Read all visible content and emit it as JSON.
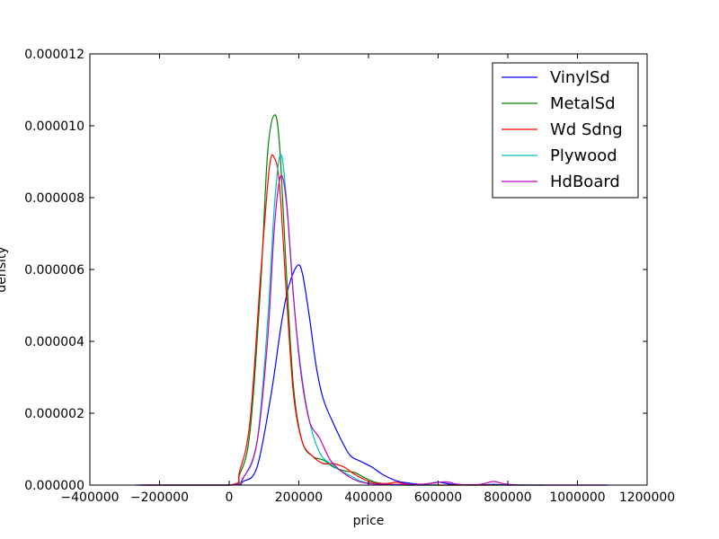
{
  "chart_data": {
    "type": "line",
    "xlabel": "price",
    "ylabel": "density",
    "xlim": [
      -400000,
      1200000
    ],
    "ylim": [
      0,
      1.2e-05
    ],
    "x_ticks": [
      -400000,
      -200000,
      0,
      200000,
      400000,
      600000,
      800000,
      1000000,
      1200000
    ],
    "x_tick_labels": [
      "−400000",
      "−200000",
      "0",
      "200000",
      "400000",
      "600000",
      "800000",
      "1000000",
      "1200000"
    ],
    "y_ticks": [
      0,
      2e-06,
      4e-06,
      6e-06,
      8e-06,
      1e-05,
      1.2e-05
    ],
    "y_tick_labels": [
      "0.000000",
      "0.000002",
      "0.000004",
      "0.000006",
      "0.000008",
      "0.000010",
      "0.000012"
    ],
    "grid": false,
    "legend_position": "top-right",
    "series": [
      {
        "name": "VinylSd",
        "color": "#0000ff",
        "points": [
          [
            -260000,
            0
          ],
          [
            0,
            0
          ],
          [
            40000,
            1e-07
          ],
          [
            80000,
            5e-07
          ],
          [
            120000,
            2.5e-06
          ],
          [
            150000,
            4.5e-06
          ],
          [
            170000,
            5.5e-06
          ],
          [
            195000,
            6.1e-06
          ],
          [
            210000,
            5.9e-06
          ],
          [
            230000,
            4.7e-06
          ],
          [
            250000,
            3.3e-06
          ],
          [
            270000,
            2.4e-06
          ],
          [
            300000,
            1.7e-06
          ],
          [
            330000,
            1.1e-06
          ],
          [
            350000,
            8e-07
          ],
          [
            380000,
            6.5e-07
          ],
          [
            410000,
            5e-07
          ],
          [
            440000,
            3e-07
          ],
          [
            480000,
            1.2e-07
          ],
          [
            520000,
            5e-08
          ],
          [
            560000,
            2e-08
          ],
          [
            600000,
            8e-08
          ],
          [
            640000,
            2e-08
          ],
          [
            700000,
            0
          ],
          [
            760000,
            2e-08
          ],
          [
            800000,
            0
          ],
          [
            900000,
            0
          ],
          [
            1000000,
            0
          ],
          [
            1090000,
            0
          ]
        ]
      },
      {
        "name": "MetalSd",
        "color": "#008000",
        "points": [
          [
            -250000,
            0
          ],
          [
            0,
            0
          ],
          [
            30000,
            3e-07
          ],
          [
            60000,
            1.5e-06
          ],
          [
            90000,
            5.5e-06
          ],
          [
            110000,
            9.2e-06
          ],
          [
            130000,
            1.03e-05
          ],
          [
            145000,
            9.4e-06
          ],
          [
            165000,
            5.8e-06
          ],
          [
            185000,
            2.7e-06
          ],
          [
            210000,
            1.2e-06
          ],
          [
            240000,
            8e-07
          ],
          [
            270000,
            7e-07
          ],
          [
            300000,
            5e-07
          ],
          [
            330000,
            4e-07
          ],
          [
            360000,
            3.5e-07
          ],
          [
            390000,
            2e-07
          ],
          [
            420000,
            8e-08
          ],
          [
            460000,
            2e-08
          ],
          [
            520000,
            0
          ],
          [
            700000,
            0
          ],
          [
            900000,
            0
          ]
        ]
      },
      {
        "name": "Wd Sdng",
        "color": "#ff0000",
        "points": [
          [
            -240000,
            0
          ],
          [
            0,
            0
          ],
          [
            30000,
            4e-07
          ],
          [
            60000,
            1.8e-06
          ],
          [
            90000,
            5.8e-06
          ],
          [
            115000,
            8.8e-06
          ],
          [
            130000,
            9.1e-06
          ],
          [
            145000,
            8.3e-06
          ],
          [
            165000,
            5.2e-06
          ],
          [
            185000,
            2.5e-06
          ],
          [
            210000,
            1.2e-06
          ],
          [
            240000,
            8e-07
          ],
          [
            270000,
            6e-07
          ],
          [
            300000,
            6e-07
          ],
          [
            330000,
            5e-07
          ],
          [
            360000,
            3e-07
          ],
          [
            390000,
            1.5e-07
          ],
          [
            420000,
            5e-08
          ],
          [
            460000,
            5e-08
          ],
          [
            480000,
            8e-08
          ],
          [
            520000,
            2e-08
          ],
          [
            600000,
            0
          ],
          [
            750000,
            0
          ]
        ]
      },
      {
        "name": "Plywood",
        "color": "#00bfbf",
        "points": [
          [
            -200000,
            0
          ],
          [
            0,
            0
          ],
          [
            40000,
            2e-07
          ],
          [
            80000,
            1.2e-06
          ],
          [
            110000,
            4.5e-06
          ],
          [
            130000,
            7.8e-06
          ],
          [
            148000,
            9.2e-06
          ],
          [
            165000,
            7.9e-06
          ],
          [
            185000,
            5.2e-06
          ],
          [
            205000,
            3.3e-06
          ],
          [
            230000,
            1.8e-06
          ],
          [
            260000,
            9e-07
          ],
          [
            290000,
            6e-07
          ],
          [
            320000,
            4e-07
          ],
          [
            350000,
            2.5e-07
          ],
          [
            380000,
            1e-07
          ],
          [
            420000,
            3e-08
          ],
          [
            470000,
            0
          ],
          [
            600000,
            0
          ]
        ]
      },
      {
        "name": "HdBoard",
        "color": "#bf00bf",
        "points": [
          [
            -270000,
            0
          ],
          [
            0,
            0
          ],
          [
            40000,
            2e-07
          ],
          [
            80000,
            1.2e-06
          ],
          [
            110000,
            4e-06
          ],
          [
            130000,
            7.2e-06
          ],
          [
            148000,
            8.6e-06
          ],
          [
            165000,
            7.8e-06
          ],
          [
            185000,
            5.2e-06
          ],
          [
            205000,
            3.2e-06
          ],
          [
            230000,
            1.8e-06
          ],
          [
            260000,
            1.3e-06
          ],
          [
            290000,
            7e-07
          ],
          [
            320000,
            4e-07
          ],
          [
            350000,
            2e-07
          ],
          [
            380000,
            8e-08
          ],
          [
            420000,
            3e-08
          ],
          [
            480000,
            2e-08
          ],
          [
            560000,
            3e-08
          ],
          [
            620000,
            9e-08
          ],
          [
            660000,
            2e-08
          ],
          [
            720000,
            2e-08
          ],
          [
            760000,
            1e-07
          ],
          [
            800000,
            2e-08
          ],
          [
            900000,
            0
          ],
          [
            1080000,
            0
          ]
        ]
      }
    ]
  }
}
